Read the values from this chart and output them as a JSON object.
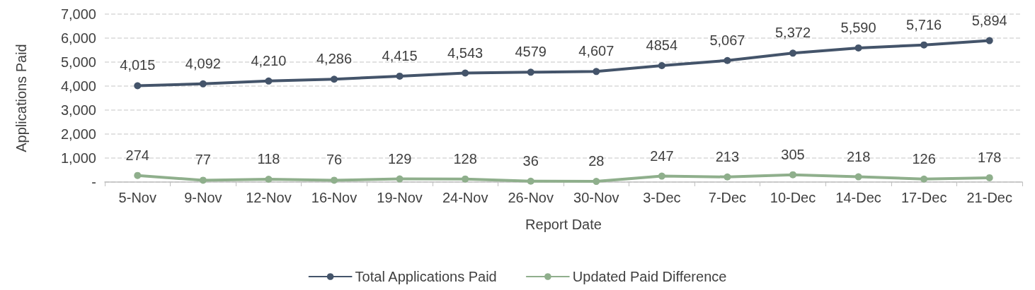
{
  "chart_data": {
    "type": "line",
    "xlabel": "Report Date",
    "ylabel": "Applications Paid",
    "categories": [
      "5-Nov",
      "9-Nov",
      "12-Nov",
      "16-Nov",
      "19-Nov",
      "24-Nov",
      "26-Nov",
      "30-Nov",
      "3-Dec",
      "7-Dec",
      "10-Dec",
      "14-Dec",
      "17-Dec",
      "21-Dec"
    ],
    "series": [
      {
        "name": "Total Applications Paid",
        "color": "#44546a",
        "values": [
          4015,
          4092,
          4210,
          4286,
          4415,
          4543,
          4579,
          4607,
          4854,
          5067,
          5372,
          5590,
          5716,
          5894
        ],
        "value_labels": [
          "4,015",
          "4,092",
          "4,210",
          "4,286",
          "4,415",
          "4,543",
          "4579",
          "4,607",
          "4854",
          "5,067",
          "5,372",
          "5,590",
          "5,716",
          "5,894"
        ]
      },
      {
        "name": "Updated Paid Difference",
        "color": "#8faf8c",
        "values": [
          274,
          77,
          118,
          76,
          129,
          128,
          36,
          28,
          247,
          213,
          305,
          218,
          126,
          178
        ],
        "value_labels": [
          "274",
          "77",
          "118",
          "76",
          "129",
          "128",
          "36",
          "28",
          "247",
          "213",
          "305",
          "218",
          "126",
          "178"
        ]
      }
    ],
    "ylim": [
      0,
      7000
    ],
    "yticks": [
      {
        "value": 0,
        "label": "-"
      },
      {
        "value": 1000,
        "label": "1,000"
      },
      {
        "value": 2000,
        "label": "2,000"
      },
      {
        "value": 3000,
        "label": "3,000"
      },
      {
        "value": 4000,
        "label": "4,000"
      },
      {
        "value": 5000,
        "label": "5,000"
      },
      {
        "value": 6000,
        "label": "6,000"
      },
      {
        "value": 7000,
        "label": "7,000"
      }
    ],
    "grid": "y",
    "legend": "bottom",
    "marker": "circle",
    "line_style": "solid"
  }
}
